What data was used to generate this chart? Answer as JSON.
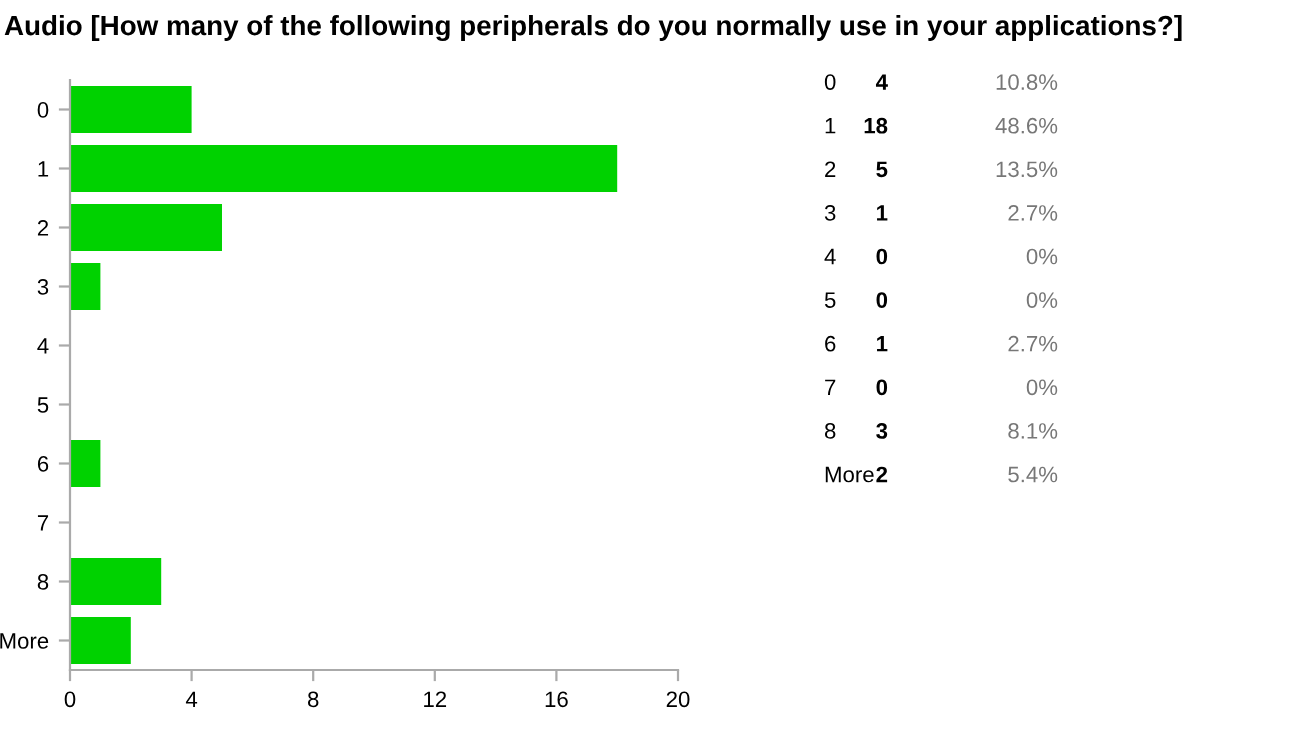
{
  "chart_data": {
    "type": "bar",
    "orientation": "horizontal",
    "title": "Audio [How many of the following peripherals do you normally use in your applications?]",
    "categories": [
      "0",
      "1",
      "2",
      "3",
      "4",
      "5",
      "6",
      "7",
      "8",
      "More"
    ],
    "values": [
      4,
      18,
      5,
      1,
      0,
      0,
      1,
      0,
      3,
      2
    ],
    "color": "#00d200",
    "xlim": [
      0,
      20
    ],
    "xticks": [
      0,
      4,
      8,
      12,
      16,
      20
    ],
    "grid": false,
    "annotations": [
      "4",
      "18",
      "5",
      "1",
      "0",
      "0",
      "1",
      "0",
      "3",
      "2",
      "10.8%",
      "48.6%",
      "13.5%",
      "2.7%",
      "0%",
      "0%",
      "2.7%",
      "0%",
      "8.1%",
      "5.4%"
    ]
  }
}
